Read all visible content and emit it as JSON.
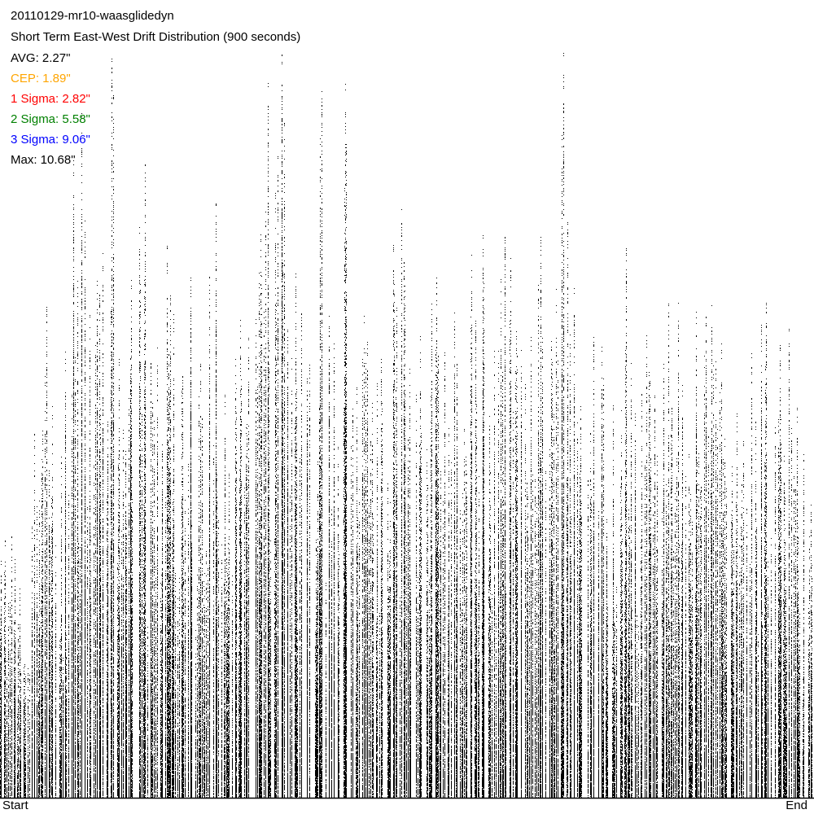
{
  "chart_data": {
    "type": "scatter",
    "title": "20110129-mr10-waasglidedyn",
    "subtitle": "Short Term East-West Drift Distribution (900 seconds)",
    "xlabel_start": "Start",
    "xlabel_end": "End",
    "ylim": [
      0,
      10.68
    ],
    "unit": "arcseconds",
    "grid": false,
    "stats": {
      "avg": "AVG: 2.27\"",
      "cep": "CEP: 1.89\"",
      "sigma1": "1 Sigma: 2.82\"",
      "sigma2": "2 Sigma: 5.58\"",
      "sigma3": "3 Sigma: 9.06\"",
      "max": "Max: 10.68\""
    },
    "stat_colors": {
      "avg": "#000000",
      "cep": "#ffa500",
      "sigma1": "#ff0000",
      "sigma2": "#008000",
      "sigma3": "#0000ff",
      "max": "#000000"
    },
    "point_color": "#000000",
    "column_peak_values": [
      3.7,
      3.8,
      3.0,
      3.9,
      5.2,
      7.1,
      5.6,
      4.9,
      6.4,
      9.1,
      9.9,
      7.5,
      8.0,
      10.68,
      6.3,
      5.8,
      7.4,
      9.1,
      6.2,
      6.5,
      8.0,
      6.9,
      6.2,
      7.5,
      6.5,
      7.5,
      8.6,
      5.8,
      6.3,
      7.0,
      6.7,
      7.5,
      10.2,
      8.7,
      10.6,
      6.7,
      7.5,
      7.0,
      6.4,
      10.1,
      6.9,
      6.5,
      10.2,
      6.0,
      6.9,
      6.7,
      6.3,
      4.6,
      7.9,
      8.5,
      6.2,
      6.7,
      5.8,
      7.5,
      6.4,
      7.0,
      6.4,
      7.8,
      6.9,
      8.1,
      6.4,
      7.4,
      8.2,
      6.7,
      6.4,
      6.6,
      8.0,
      6.7,
      7.3,
      10.68,
      7.3,
      5.6,
      6.7,
      6.5,
      6.0,
      5.6,
      8.0,
      6.2,
      5.8,
      6.6,
      5.9,
      6.4,
      7.1,
      7.1,
      4.9,
      7.0,
      6.9,
      7.1,
      6.6,
      5.3,
      5.6,
      5.1,
      6.4,
      7.0,
      7.2,
      6.5,
      6.7,
      5.6,
      4.9,
      4.2
    ]
  }
}
